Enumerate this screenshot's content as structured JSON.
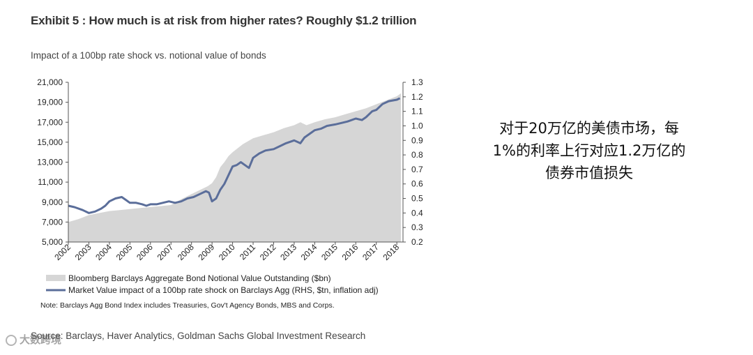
{
  "header": {
    "exhibit_title": "Exhibit 5 : How much is at risk from higher rates? Roughly $1.2 trillion",
    "subtitle": "Impact of a 100bp rate shock vs. notional value of bonds"
  },
  "footer": {
    "note": "Note: Barclays Agg Bond Index includes Treasuries, Gov't Agency Bonds, MBS and Corps.",
    "source": "Source: Barclays, Haver Analytics, Goldman Sachs Global Investment Research",
    "watermark": "大数跨境"
  },
  "annotation": {
    "line1": "对于20万亿的美债市场，每",
    "line2": "1%的利率上行对应1.2万亿的",
    "line3": "债券市值损失"
  },
  "chart_data": {
    "type": "area",
    "title": "Impact of a 100bp rate shock vs. notional value of bonds",
    "x_ticks": [
      "2002",
      "2003",
      "2004",
      "2005",
      "2006",
      "2007",
      "2008",
      "2009",
      "2010",
      "2011",
      "2012",
      "2013",
      "2014",
      "2015",
      "2016",
      "2017",
      "2018"
    ],
    "y_left": {
      "lim": [
        5000,
        21000
      ],
      "ticks": [
        "5,000",
        "7,000",
        "9,000",
        "11,000",
        "13,000",
        "15,000",
        "17,000",
        "19,000",
        "21,000"
      ]
    },
    "y_right": {
      "lim": [
        0.2,
        1.3
      ],
      "ticks": [
        "0.2",
        "0.3",
        "0.4",
        "0.5",
        "0.6",
        "0.7",
        "0.8",
        "0.9",
        "1.0",
        "1.1",
        "1.2",
        "1.3"
      ]
    },
    "legend_position": "bottom",
    "grid": false,
    "colors": {
      "area": "#d6d6d6",
      "line": "#5b6e9a"
    },
    "series": [
      {
        "name": "Bloomberg Barclays Aggregate Bond Notional Value Outstanding ($bn)",
        "type": "area",
        "axis": "left",
        "x": [
          2002.0,
          2002.5,
          2003.0,
          2003.5,
          2004.0,
          2004.5,
          2005.0,
          2005.5,
          2006.0,
          2006.5,
          2007.0,
          2007.5,
          2008.0,
          2008.5,
          2008.8,
          2009.0,
          2009.2,
          2009.4,
          2009.6,
          2009.8,
          2010.0,
          2010.5,
          2011.0,
          2011.5,
          2012.0,
          2012.5,
          2013.0,
          2013.3,
          2013.6,
          2014.0,
          2014.5,
          2015.0,
          2015.5,
          2016.0,
          2016.5,
          2017.0,
          2017.5,
          2018.0,
          2018.2
        ],
        "values": [
          7000,
          7300,
          7700,
          7900,
          8100,
          8200,
          8300,
          8400,
          8500,
          8600,
          8700,
          9300,
          9800,
          10300,
          10600,
          10900,
          11500,
          12500,
          13000,
          13600,
          14000,
          14800,
          15400,
          15700,
          16000,
          16400,
          16700,
          17000,
          16700,
          17000,
          17300,
          17500,
          17800,
          18100,
          18400,
          18800,
          19200,
          19600,
          19900
        ]
      },
      {
        "name": "Market Value impact of a 100bp rate shock on Barclays Agg (RHS, $tn, inflation adj)",
        "type": "line",
        "axis": "right",
        "x": [
          2002.0,
          2002.3,
          2002.7,
          2003.0,
          2003.3,
          2003.6,
          2003.8,
          2004.0,
          2004.3,
          2004.6,
          2004.8,
          2005.0,
          2005.3,
          2005.6,
          2005.8,
          2006.0,
          2006.3,
          2006.6,
          2006.9,
          2007.2,
          2007.5,
          2007.8,
          2008.1,
          2008.4,
          2008.7,
          2008.85,
          2009.0,
          2009.2,
          2009.4,
          2009.6,
          2009.8,
          2010.0,
          2010.2,
          2010.4,
          2010.6,
          2010.8,
          2011.0,
          2011.3,
          2011.6,
          2012.0,
          2012.3,
          2012.6,
          2013.0,
          2013.3,
          2013.5,
          2013.8,
          2014.0,
          2014.3,
          2014.6,
          2015.0,
          2015.3,
          2015.6,
          2016.0,
          2016.3,
          2016.5,
          2016.8,
          2017.0,
          2017.3,
          2017.6,
          2018.0,
          2018.15
        ],
        "values": [
          0.45,
          0.44,
          0.42,
          0.4,
          0.41,
          0.43,
          0.45,
          0.48,
          0.5,
          0.51,
          0.49,
          0.47,
          0.47,
          0.46,
          0.45,
          0.46,
          0.46,
          0.47,
          0.48,
          0.47,
          0.48,
          0.5,
          0.51,
          0.53,
          0.55,
          0.54,
          0.48,
          0.5,
          0.56,
          0.6,
          0.66,
          0.72,
          0.73,
          0.75,
          0.73,
          0.71,
          0.78,
          0.81,
          0.83,
          0.84,
          0.86,
          0.88,
          0.9,
          0.88,
          0.92,
          0.95,
          0.97,
          0.98,
          1.0,
          1.01,
          1.02,
          1.03,
          1.05,
          1.04,
          1.06,
          1.1,
          1.11,
          1.15,
          1.17,
          1.18,
          1.19
        ]
      }
    ]
  }
}
